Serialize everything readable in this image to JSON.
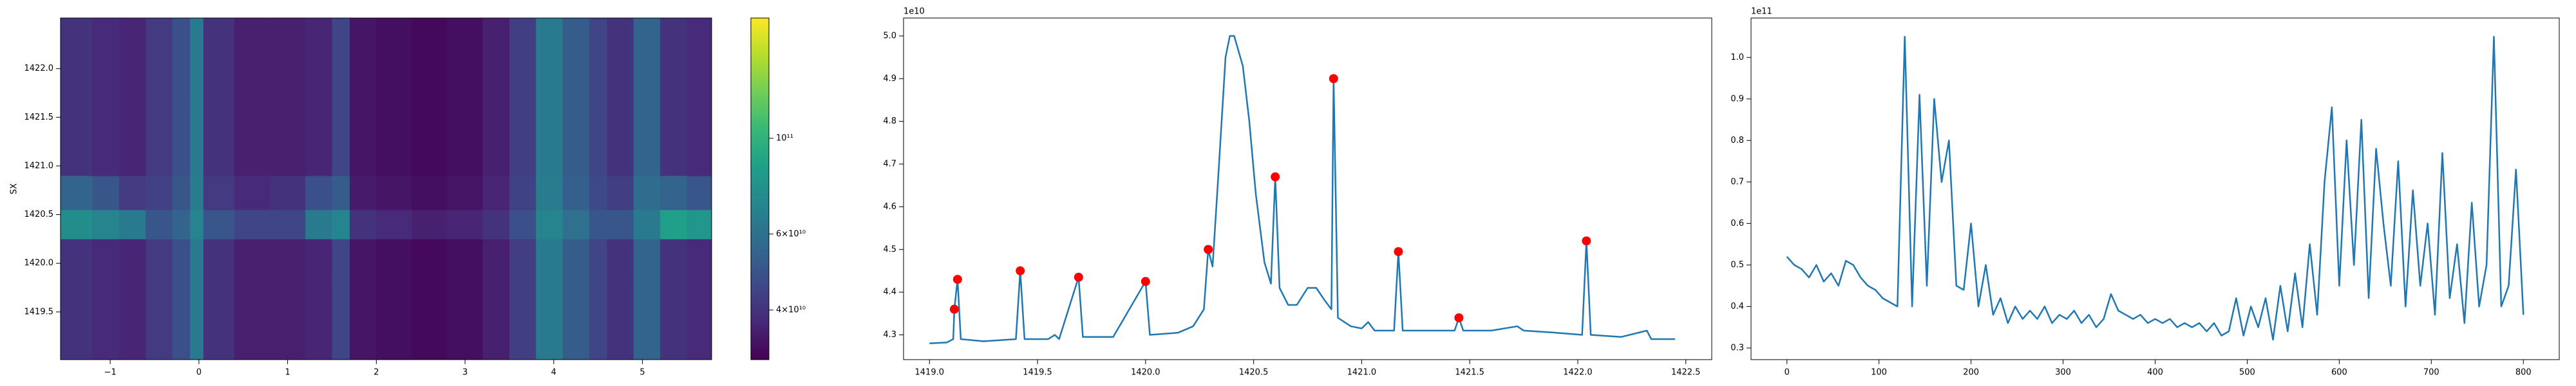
{
  "chart_data": [
    {
      "type": "heatmap",
      "ylabel": "SX",
      "colormap": "viridis",
      "xlim": [
        -1.56,
        5.78
      ],
      "xticks": [
        {
          "value": -1,
          "label": "−1"
        },
        0,
        1,
        2,
        3,
        4,
        5
      ],
      "ylim": [
        1419.01,
        1422.52
      ],
      "yticks": [
        1419.5,
        {
          "value": 1420,
          "label": "1420.0"
        },
        1420.5,
        {
          "value": 1421,
          "label": "1421.0"
        },
        1421.5,
        {
          "value": 1422,
          "label": "1422.0"
        }
      ],
      "x_edges": [
        -1.56,
        -1.2,
        -0.9,
        -0.6,
        -0.3,
        -0.1,
        0.05,
        0.4,
        0.8,
        1.2,
        1.5,
        1.7,
        2.0,
        2.4,
        2.8,
        3.2,
        3.5,
        3.8,
        4.1,
        4.4,
        4.6,
        4.9,
        5.2,
        5.5,
        5.78
      ],
      "y_edges": [
        1419.01,
        1419.8,
        1420.25,
        1420.55,
        1420.9,
        1421.6,
        1422.52
      ],
      "z": [
        [
          40000000000.0,
          38000000000.0,
          37000000000.0,
          42000000000.0,
          48000000000.0,
          65000000000.0,
          40000000000.0,
          36000000000.0,
          36000000000.0,
          37000000000.0,
          45000000000.0,
          34000000000.0,
          33000000000.0,
          32000000000.0,
          33000000000.0,
          36000000000.0,
          43000000000.0,
          65000000000.0,
          52000000000.0,
          45000000000.0,
          40000000000.0,
          55000000000.0,
          40000000000.0,
          38000000000.0
        ],
        [
          40000000000.0,
          38000000000.0,
          37000000000.0,
          42000000000.0,
          48000000000.0,
          65000000000.0,
          40000000000.0,
          36000000000.0,
          36000000000.0,
          37000000000.0,
          45000000000.0,
          34000000000.0,
          33000000000.0,
          32000000000.0,
          33000000000.0,
          36000000000.0,
          43000000000.0,
          65000000000.0,
          52000000000.0,
          45000000000.0,
          40000000000.0,
          55000000000.0,
          40000000000.0,
          38000000000.0
        ],
        [
          75000000000.0,
          70000000000.0,
          65000000000.0,
          50000000000.0,
          55000000000.0,
          70000000000.0,
          50000000000.0,
          45000000000.0,
          45000000000.0,
          65000000000.0,
          70000000000.0,
          40000000000.0,
          38000000000.0,
          36000000000.0,
          37000000000.0,
          40000000000.0,
          48000000000.0,
          70000000000.0,
          60000000000.0,
          50000000000.0,
          50000000000.0,
          65000000000.0,
          85000000000.0,
          80000000000.0
        ],
        [
          55000000000.0,
          50000000000.0,
          42000000000.0,
          44000000000.0,
          50000000000.0,
          66000000000.0,
          42000000000.0,
          38000000000.0,
          40000000000.0,
          48000000000.0,
          52000000000.0,
          35000000000.0,
          34000000000.0,
          33000000000.0,
          34000000000.0,
          37000000000.0,
          44000000000.0,
          66000000000.0,
          53000000000.0,
          46000000000.0,
          43000000000.0,
          58000000000.0,
          55000000000.0,
          50000000000.0
        ],
        [
          40000000000.0,
          38000000000.0,
          37000000000.0,
          42000000000.0,
          48000000000.0,
          65000000000.0,
          40000000000.0,
          36000000000.0,
          36000000000.0,
          37000000000.0,
          45000000000.0,
          34000000000.0,
          33000000000.0,
          32000000000.0,
          33000000000.0,
          36000000000.0,
          43000000000.0,
          65000000000.0,
          52000000000.0,
          45000000000.0,
          40000000000.0,
          55000000000.0,
          40000000000.0,
          38000000000.0
        ],
        [
          40000000000.0,
          38000000000.0,
          37000000000.0,
          42000000000.0,
          48000000000.0,
          65000000000.0,
          40000000000.0,
          36000000000.0,
          36000000000.0,
          37000000000.0,
          45000000000.0,
          34000000000.0,
          33000000000.0,
          32000000000.0,
          33000000000.0,
          36000000000.0,
          43000000000.0,
          65000000000.0,
          52000000000.0,
          45000000000.0,
          40000000000.0,
          55000000000.0,
          40000000000.0,
          38000000000.0
        ]
      ],
      "colorbar": {
        "log": true,
        "lim": [
          30700000000.0,
          190000000000.0
        ],
        "ticks": [
          {
            "value": 40000000000.0,
            "label": "4×10¹⁰"
          },
          {
            "value": 60000000000.0,
            "label": "6×10¹⁰"
          },
          {
            "value": 100000000000.0,
            "label": "10¹¹"
          }
        ]
      }
    },
    {
      "type": "line",
      "offset_label": "1e10",
      "xlim": [
        1418.88,
        1422.62
      ],
      "xticks": [
        {
          "value": 1419,
          "label": "1419.0"
        },
        1419.5,
        {
          "value": 1420,
          "label": "1420.0"
        },
        1420.5,
        {
          "value": 1421,
          "label": "1421.0"
        },
        1421.5,
        {
          "value": 1422,
          "label": "1422.0"
        },
        1422.5
      ],
      "ylim": [
        4.242,
        5.042
      ],
      "yticks": [
        4.3,
        4.4,
        4.5,
        4.6,
        4.7,
        4.8,
        4.9,
        {
          "value": 5,
          "label": "5.0"
        }
      ],
      "series": [
        {
          "color": "#1f77b4",
          "x": [
            1419.0,
            1419.08,
            1419.11,
            1419.115,
            1419.13,
            1419.145,
            1419.25,
            1419.4,
            1419.42,
            1419.44,
            1419.55,
            1419.58,
            1419.6,
            1419.69,
            1419.71,
            1419.85,
            1420.0,
            1420.02,
            1420.15,
            1420.22,
            1420.27,
            1420.29,
            1420.31,
            1420.34,
            1420.37,
            1420.39,
            1420.41,
            1420.45,
            1420.48,
            1420.51,
            1420.55,
            1420.58,
            1420.6,
            1420.62,
            1420.66,
            1420.7,
            1420.75,
            1420.79,
            1420.83,
            1420.86,
            1420.87,
            1420.89,
            1420.95,
            1421.0,
            1421.03,
            1421.06,
            1421.15,
            1421.17,
            1421.19,
            1421.3,
            1421.43,
            1421.45,
            1421.47,
            1421.6,
            1421.72,
            1421.75,
            1421.9,
            1422.02,
            1422.04,
            1422.06,
            1422.2,
            1422.32,
            1422.34,
            1422.45
          ],
          "values": [
            4.28,
            4.282,
            4.29,
            4.36,
            4.43,
            4.29,
            4.285,
            4.29,
            4.45,
            4.29,
            4.29,
            4.3,
            4.29,
            4.435,
            4.295,
            4.295,
            4.425,
            4.3,
            4.305,
            4.32,
            4.36,
            4.5,
            4.46,
            4.7,
            4.95,
            5.0,
            5.0,
            4.93,
            4.8,
            4.63,
            4.47,
            4.42,
            4.67,
            4.41,
            4.37,
            4.37,
            4.41,
            4.41,
            4.38,
            4.36,
            4.9,
            4.34,
            4.32,
            4.315,
            4.33,
            4.31,
            4.31,
            4.495,
            4.31,
            4.31,
            4.31,
            4.34,
            4.31,
            4.31,
            4.32,
            4.31,
            4.305,
            4.3,
            4.52,
            4.3,
            4.295,
            4.31,
            4.29,
            4.29
          ]
        },
        {
          "color": "red",
          "marker": "o",
          "line": false,
          "x": [
            1419.115,
            1419.13,
            1419.42,
            1419.69,
            1420.0,
            1420.29,
            1420.6,
            1420.87,
            1421.17,
            1421.45,
            1422.04
          ],
          "values": [
            4.36,
            4.43,
            4.45,
            4.435,
            4.425,
            4.5,
            4.67,
            4.9,
            4.495,
            4.34,
            4.52
          ]
        }
      ]
    },
    {
      "type": "line",
      "offset_label": "1e11",
      "xlim": [
        -39,
        839
      ],
      "xticks": [
        0,
        100,
        200,
        300,
        400,
        500,
        600,
        700,
        800
      ],
      "ylim": [
        0.272,
        1.095
      ],
      "yticks": [
        0.3,
        0.4,
        0.5,
        0.6,
        0.7,
        0.8,
        0.9,
        {
          "value": 1,
          "label": "1.0"
        }
      ],
      "series": [
        {
          "color": "#1f77b4",
          "x": [
            0,
            8,
            16,
            24,
            32,
            40,
            48,
            56,
            64,
            72,
            80,
            88,
            96,
            104,
            112,
            120,
            128,
            136,
            144,
            152,
            160,
            168,
            176,
            184,
            192,
            200,
            208,
            216,
            224,
            232,
            240,
            248,
            256,
            264,
            272,
            280,
            288,
            296,
            304,
            312,
            320,
            328,
            336,
            344,
            352,
            360,
            368,
            376,
            384,
            392,
            400,
            408,
            416,
            424,
            432,
            440,
            448,
            456,
            464,
            472,
            480,
            488,
            496,
            504,
            512,
            520,
            528,
            536,
            544,
            552,
            560,
            568,
            576,
            584,
            592,
            600,
            608,
            616,
            624,
            632,
            640,
            648,
            656,
            664,
            672,
            680,
            688,
            696,
            704,
            712,
            720,
            728,
            736,
            744,
            752,
            760,
            768,
            776,
            784,
            792,
            800
          ],
          "values": [
            0.52,
            0.5,
            0.49,
            0.47,
            0.5,
            0.46,
            0.48,
            0.45,
            0.51,
            0.5,
            0.47,
            0.45,
            0.44,
            0.42,
            0.41,
            0.4,
            1.05,
            0.4,
            0.91,
            0.45,
            0.9,
            0.7,
            0.8,
            0.45,
            0.44,
            0.6,
            0.4,
            0.5,
            0.38,
            0.42,
            0.36,
            0.4,
            0.37,
            0.39,
            0.37,
            0.4,
            0.36,
            0.38,
            0.37,
            0.39,
            0.36,
            0.38,
            0.35,
            0.37,
            0.43,
            0.39,
            0.38,
            0.37,
            0.38,
            0.36,
            0.37,
            0.36,
            0.37,
            0.35,
            0.36,
            0.35,
            0.36,
            0.34,
            0.36,
            0.33,
            0.34,
            0.42,
            0.33,
            0.4,
            0.35,
            0.42,
            0.32,
            0.45,
            0.34,
            0.48,
            0.35,
            0.55,
            0.38,
            0.7,
            0.88,
            0.45,
            0.8,
            0.5,
            0.85,
            0.42,
            0.78,
            0.6,
            0.45,
            0.75,
            0.4,
            0.68,
            0.45,
            0.6,
            0.38,
            0.77,
            0.42,
            0.55,
            0.36,
            0.65,
            0.4,
            0.5,
            1.05,
            0.4,
            0.45,
            0.73,
            0.38
          ]
        }
      ]
    }
  ]
}
